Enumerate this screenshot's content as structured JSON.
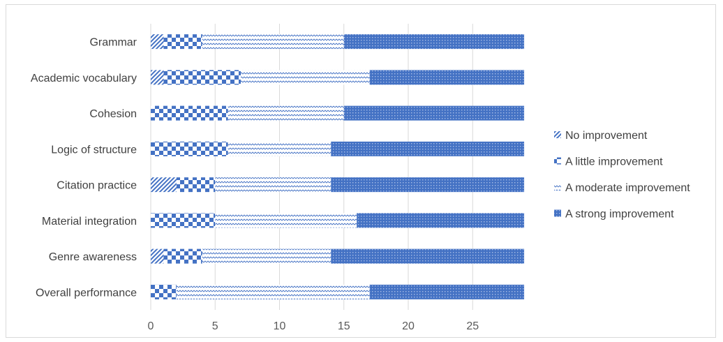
{
  "chart_data": {
    "type": "bar",
    "orientation": "horizontal",
    "stacked": true,
    "categories": [
      "Grammar",
      "Academic vocabulary",
      "Cohesion",
      "Logic of structure",
      "Citation practice",
      "Material integration",
      "Genre awareness",
      "Overall performance"
    ],
    "series": [
      {
        "name": "No improvement",
        "values": [
          1,
          1,
          0,
          0,
          2,
          0,
          1,
          0
        ]
      },
      {
        "name": "A little improvement",
        "values": [
          3,
          6,
          6,
          6,
          3,
          5,
          3,
          2
        ]
      },
      {
        "name": "A moderate improvement",
        "values": [
          11,
          10,
          9,
          8,
          9,
          11,
          10,
          15
        ]
      },
      {
        "name": "A strong improvement",
        "values": [
          14,
          12,
          14,
          15,
          15,
          13,
          15,
          12
        ]
      }
    ],
    "xlim": [
      0,
      30
    ],
    "xticks": [
      "0",
      "5",
      "10",
      "15",
      "20",
      "25"
    ],
    "legend_position": "right",
    "grid": "vertical",
    "colors": {
      "bar": "#4472c4",
      "grid": "#d9d9d9",
      "text": "#404040"
    }
  }
}
